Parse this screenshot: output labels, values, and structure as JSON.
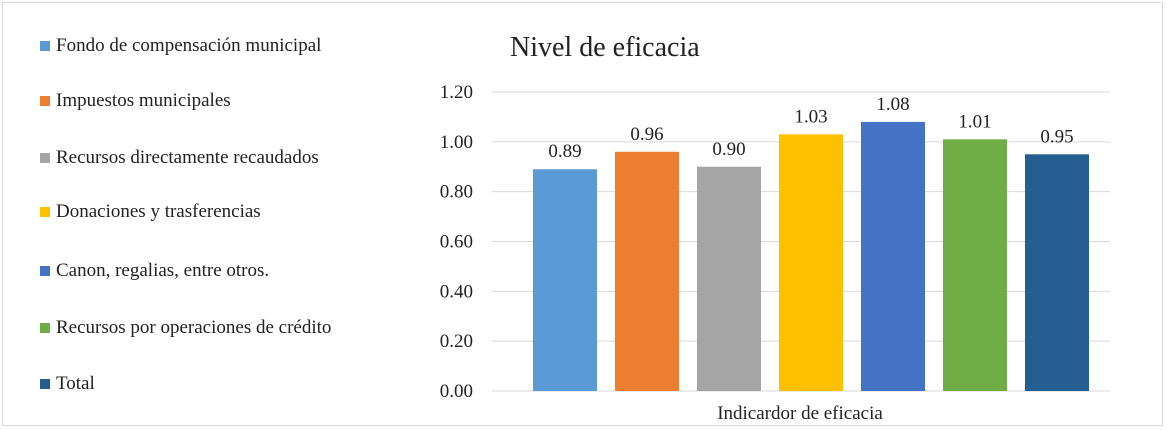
{
  "chart_data": {
    "type": "bar",
    "title": "Nivel de eficacia",
    "xlabel": "Indicardor de eficacia",
    "ylabel": "",
    "ylim": [
      0,
      1.2
    ],
    "yticks": [
      "0.00",
      "0.20",
      "0.40",
      "0.60",
      "0.80",
      "1.00",
      "1.20"
    ],
    "categories": [
      "Indicardor de eficacia"
    ],
    "grid": true,
    "legend_position": "left",
    "series": [
      {
        "name": "Fondo de compensación municipal",
        "value": 0.89,
        "label": "0.89",
        "color": "#5B9BD5"
      },
      {
        "name": "Impuestos municipales",
        "value": 0.96,
        "label": "0.96",
        "color": "#ED7D31"
      },
      {
        "name": "Recursos directamente recaudados",
        "value": 0.9,
        "label": "0.90",
        "color": "#A5A5A5"
      },
      {
        "name": "Donaciones y trasferencias",
        "value": 1.03,
        "label": "1.03",
        "color": "#FFC000"
      },
      {
        "name": "Canon, regalias, entre otros.",
        "value": 1.08,
        "label": "1.08",
        "color": "#4472C4"
      },
      {
        "name": "Recursos por operaciones de crédito",
        "value": 1.01,
        "label": "1.01",
        "color": "#70AD47"
      },
      {
        "name": "Total",
        "value": 0.95,
        "label": "0.95",
        "color": "#255E91"
      }
    ]
  }
}
